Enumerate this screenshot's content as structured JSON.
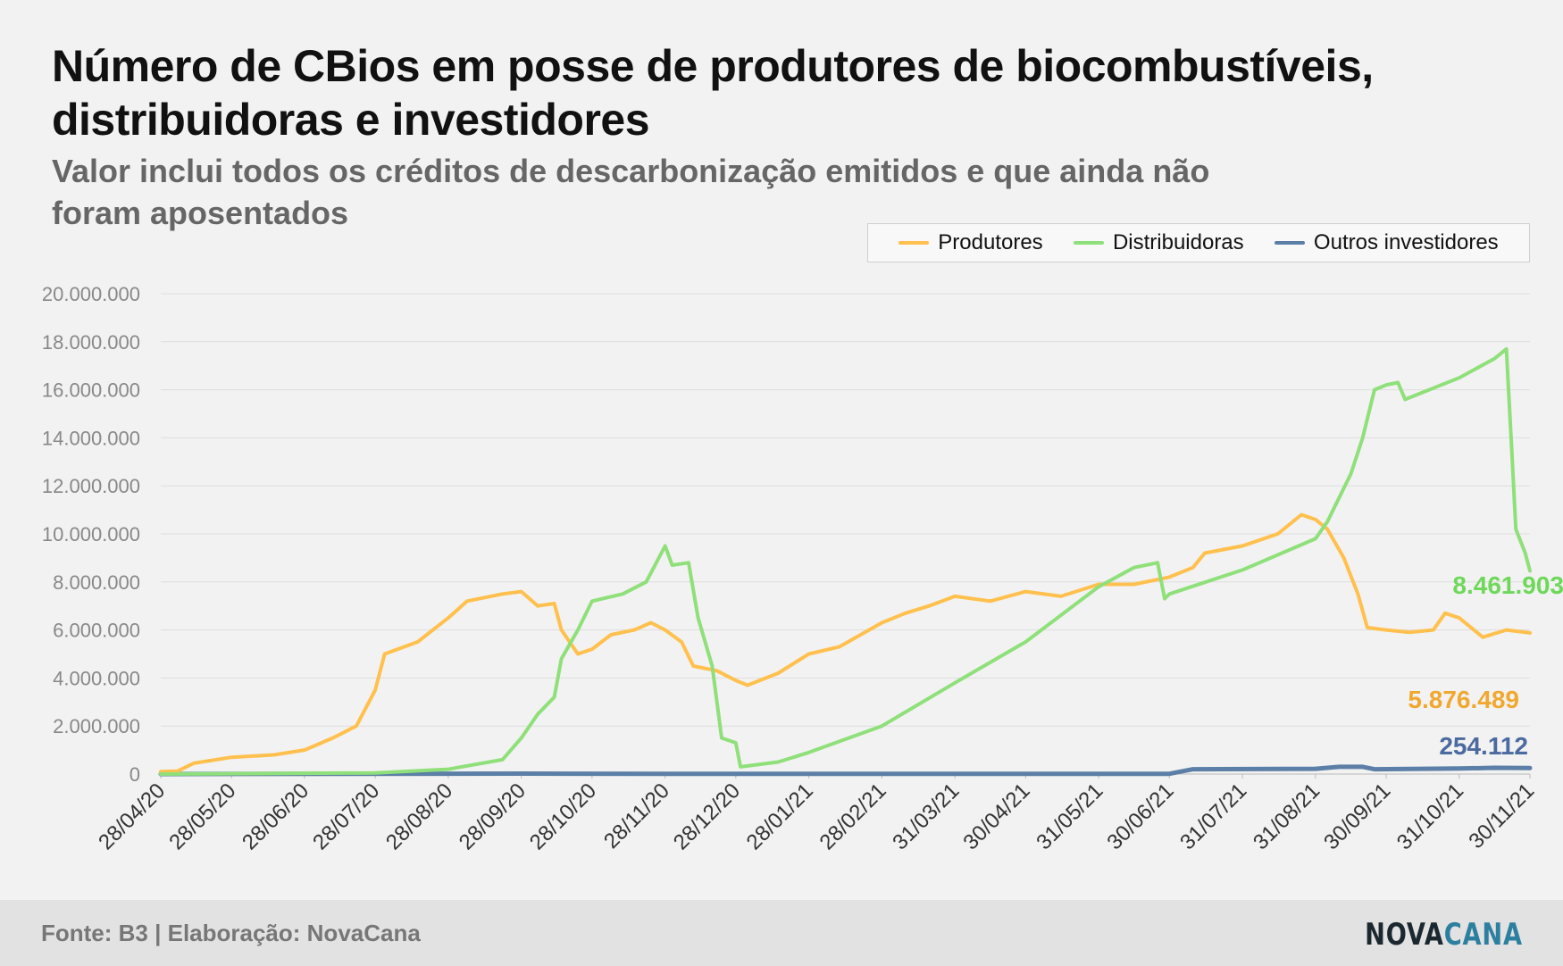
{
  "title": "Número de CBios em posse de produtores de biocombustíveis, distribuidoras e investidores",
  "subtitle": "Valor inclui todos os créditos de descarbonização emitidos e que ainda não foram aposentados",
  "footer": {
    "source": "Fonte: B3 | Elaboração: NovaCana",
    "logo_a": "NOVA",
    "logo_b": "CANA"
  },
  "colors": {
    "produtores": "#ffc04d",
    "distribuidoras": "#8fe07a",
    "outros": "#5b7fa6",
    "label_produtores": "#f0a830",
    "label_distribuidoras": "#6ed85a",
    "label_outros": "#4b6aa0"
  },
  "chart_data": {
    "type": "line",
    "title": "Número de CBios em posse de produtores de biocombustíveis, distribuidoras e investidores",
    "ylim": [
      0,
      20000000
    ],
    "yticks": [
      "0",
      "2.000.000",
      "4.000.000",
      "6.000.000",
      "8.000.000",
      "10.000.000",
      "12.000.000",
      "14.000.000",
      "16.000.000",
      "18.000.000",
      "20.000.000"
    ],
    "xlim": [
      "28/04/20",
      "30/11/21"
    ],
    "xticks": [
      "28/04/20",
      "28/05/20",
      "28/06/20",
      "28/07/20",
      "28/08/20",
      "28/09/20",
      "28/10/20",
      "28/11/20",
      "28/12/20",
      "28/01/21",
      "28/02/21",
      "31/03/21",
      "30/04/21",
      "31/05/21",
      "30/06/21",
      "31/07/21",
      "31/08/21",
      "30/09/21",
      "31/10/21",
      "30/11/21"
    ],
    "grid": true,
    "legend": "top-right",
    "series": [
      {
        "name": "Produtores",
        "end_label": "5.876.489",
        "points": [
          [
            "28/04/20",
            100000
          ],
          [
            "05/05/20",
            120000
          ],
          [
            "12/05/20",
            450000
          ],
          [
            "28/05/20",
            700000
          ],
          [
            "15/06/20",
            800000
          ],
          [
            "28/06/20",
            1000000
          ],
          [
            "10/07/20",
            1500000
          ],
          [
            "20/07/20",
            2000000
          ],
          [
            "28/07/20",
            3500000
          ],
          [
            "01/08/20",
            5000000
          ],
          [
            "15/08/20",
            5500000
          ],
          [
            "28/08/20",
            6500000
          ],
          [
            "05/09/20",
            7200000
          ],
          [
            "20/09/20",
            7500000
          ],
          [
            "28/09/20",
            7600000
          ],
          [
            "05/10/20",
            7000000
          ],
          [
            "12/10/20",
            7100000
          ],
          [
            "15/10/20",
            6000000
          ],
          [
            "22/10/20",
            5000000
          ],
          [
            "28/10/20",
            5200000
          ],
          [
            "05/11/20",
            5800000
          ],
          [
            "15/11/20",
            6000000
          ],
          [
            "22/11/20",
            6300000
          ],
          [
            "28/11/20",
            6000000
          ],
          [
            "05/12/20",
            5500000
          ],
          [
            "10/12/20",
            4500000
          ],
          [
            "20/12/20",
            4300000
          ],
          [
            "28/12/20",
            3900000
          ],
          [
            "02/01/21",
            3700000
          ],
          [
            "15/01/21",
            4200000
          ],
          [
            "28/01/21",
            5000000
          ],
          [
            "10/02/21",
            5300000
          ],
          [
            "28/02/21",
            6300000
          ],
          [
            "10/03/21",
            6700000
          ],
          [
            "20/03/21",
            7000000
          ],
          [
            "31/03/21",
            7400000
          ],
          [
            "15/04/21",
            7200000
          ],
          [
            "30/04/21",
            7600000
          ],
          [
            "15/05/21",
            7400000
          ],
          [
            "31/05/21",
            7900000
          ],
          [
            "15/06/21",
            7900000
          ],
          [
            "30/06/21",
            8200000
          ],
          [
            "10/07/21",
            8600000
          ],
          [
            "15/07/21",
            9200000
          ],
          [
            "31/07/21",
            9500000
          ],
          [
            "15/08/21",
            10000000
          ],
          [
            "25/08/21",
            10800000
          ],
          [
            "31/08/21",
            10600000
          ],
          [
            "05/09/21",
            10200000
          ],
          [
            "12/09/21",
            9000000
          ],
          [
            "18/09/21",
            7500000
          ],
          [
            "22/09/21",
            6100000
          ],
          [
            "30/09/21",
            6000000
          ],
          [
            "10/10/21",
            5900000
          ],
          [
            "20/10/21",
            6000000
          ],
          [
            "25/10/21",
            6700000
          ],
          [
            "31/10/21",
            6500000
          ],
          [
            "10/11/21",
            5700000
          ],
          [
            "20/11/21",
            6000000
          ],
          [
            "30/11/21",
            5876489
          ]
        ]
      },
      {
        "name": "Distribuidoras",
        "end_label": "8.461.903",
        "points": [
          [
            "28/04/20",
            0
          ],
          [
            "28/07/20",
            50000
          ],
          [
            "28/08/20",
            200000
          ],
          [
            "20/09/20",
            600000
          ],
          [
            "28/09/20",
            1500000
          ],
          [
            "05/10/20",
            2500000
          ],
          [
            "12/10/20",
            3200000
          ],
          [
            "15/10/20",
            4800000
          ],
          [
            "22/10/20",
            6000000
          ],
          [
            "28/10/20",
            7200000
          ],
          [
            "10/11/20",
            7500000
          ],
          [
            "20/11/20",
            8000000
          ],
          [
            "28/11/20",
            9500000
          ],
          [
            "01/12/20",
            8700000
          ],
          [
            "08/12/20",
            8800000
          ],
          [
            "12/12/20",
            6500000
          ],
          [
            "18/12/20",
            4500000
          ],
          [
            "22/12/20",
            1500000
          ],
          [
            "28/12/20",
            1300000
          ],
          [
            "30/12/20",
            300000
          ],
          [
            "15/01/21",
            500000
          ],
          [
            "28/01/21",
            900000
          ],
          [
            "28/02/21",
            2000000
          ],
          [
            "31/03/21",
            3800000
          ],
          [
            "30/04/21",
            5500000
          ],
          [
            "31/05/21",
            7800000
          ],
          [
            "15/06/21",
            8600000
          ],
          [
            "25/06/21",
            8800000
          ],
          [
            "28/06/21",
            7300000
          ],
          [
            "30/06/21",
            7500000
          ],
          [
            "31/07/21",
            8500000
          ],
          [
            "31/08/21",
            9800000
          ],
          [
            "05/09/21",
            10500000
          ],
          [
            "15/09/21",
            12500000
          ],
          [
            "20/09/21",
            14000000
          ],
          [
            "25/09/21",
            16000000
          ],
          [
            "30/09/21",
            16200000
          ],
          [
            "05/10/21",
            16300000
          ],
          [
            "08/10/21",
            15600000
          ],
          [
            "31/10/21",
            16500000
          ],
          [
            "15/11/21",
            17300000
          ],
          [
            "20/11/21",
            17700000
          ],
          [
            "22/11/21",
            14000000
          ],
          [
            "24/11/21",
            10200000
          ],
          [
            "28/11/21",
            9200000
          ],
          [
            "30/11/21",
            8461903
          ]
        ]
      },
      {
        "name": "Outros investidores",
        "end_label": "254.112",
        "points": [
          [
            "28/04/20",
            0
          ],
          [
            "28/09/20",
            20000
          ],
          [
            "28/11/20",
            10000
          ],
          [
            "30/06/21",
            10000
          ],
          [
            "10/07/21",
            200000
          ],
          [
            "31/08/21",
            220000
          ],
          [
            "10/09/21",
            300000
          ],
          [
            "20/09/21",
            300000
          ],
          [
            "25/09/21",
            200000
          ],
          [
            "31/10/21",
            230000
          ],
          [
            "15/11/21",
            260000
          ],
          [
            "30/11/21",
            254112
          ]
        ]
      }
    ]
  }
}
